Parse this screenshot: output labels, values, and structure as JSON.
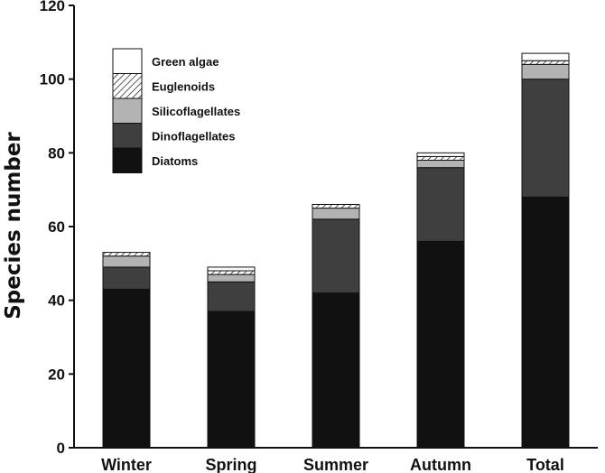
{
  "chart_data": {
    "type": "bar",
    "stacked": true,
    "categories": [
      "Winter",
      "Spring",
      "Summer",
      "Autumn",
      "Total"
    ],
    "series": [
      {
        "name": "Diatoms",
        "values": [
          43,
          37,
          42,
          56,
          68
        ],
        "color": "#111111"
      },
      {
        "name": "Dinoflagellates",
        "values": [
          6,
          8,
          20,
          20,
          32
        ],
        "color": "#3f3f3f"
      },
      {
        "name": "Silicoflagellates",
        "values": [
          3,
          2,
          3,
          2,
          4
        ],
        "color": "#b3b3b3"
      },
      {
        "name": "Euglenoids",
        "values": [
          1,
          1,
          1,
          1,
          1
        ],
        "color": "#ffffff",
        "pattern": "hatch"
      },
      {
        "name": "Green algae",
        "values": [
          0,
          1,
          0,
          1,
          2
        ],
        "color": "#ffffff"
      }
    ],
    "ylabel": "Species number",
    "xlabel": "",
    "ylim": [
      0,
      120
    ],
    "yticks": [
      0,
      20,
      40,
      60,
      80,
      100,
      120
    ],
    "legend_position": "top-left",
    "grid": false
  }
}
